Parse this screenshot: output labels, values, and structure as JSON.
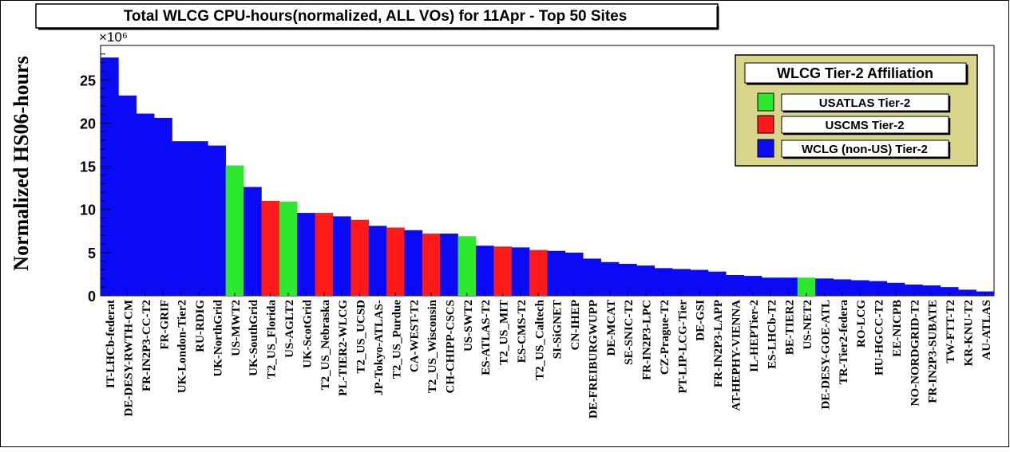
{
  "chart_data": {
    "type": "bar",
    "title": "Total WLCG CPU-hours(normalized, ALL VOs) for 11Apr - Top 50 Sites",
    "ylabel": "Normalized HS06-hours",
    "xlabel": "",
    "y_multiplier_label": "×10⁶",
    "ylim": [
      0,
      29
    ],
    "yticks": [
      0,
      5,
      10,
      15,
      20,
      25
    ],
    "grid": false,
    "legend_position": "top-right",
    "legend": {
      "title": "WLCG Tier-2 Affiliation",
      "entries": [
        {
          "label": "USATLAS Tier-2",
          "color": "#2ee82e"
        },
        {
          "label": "USCMS Tier-2",
          "color": "#ff1a1a"
        },
        {
          "label": "WCLG (non-US) Tier-2",
          "color": "#0a0af5"
        }
      ]
    },
    "colors": {
      "USATLAS": "#2ee82e",
      "USCMS": "#ff1a1a",
      "WLCG": "#0a0af5"
    },
    "categories": [
      "IT-LHCb-federat",
      "DE-DESY-RWTH-CM",
      "FR-IN2P3-CC-T2",
      "FR-GRIF",
      "UK-London-Tier2",
      "RU-RDIG",
      "UK-NorthGrid",
      "US-MWT2",
      "UK-SouthGrid",
      "T2_US_Florida",
      "US-AGLT2",
      "UK-ScotGrid",
      "T2_US_Nebraska",
      "PL-TIER2-WLCG",
      "T2_US_UCSD",
      "JP-Tokyo-ATLAS-",
      "T2_US_Purdue",
      "CA-WEST-T2",
      "T2_US_Wisconsin",
      "CH-CHIPP-CSCS",
      "US-SWT2",
      "ES-ATLAS-T2",
      "T2_US_MIT",
      "ES-CMS-T2",
      "T2_US_Caltech",
      "SI-SiGNET",
      "CN-IHEP",
      "DE-FREIBURGWUPP",
      "DE-MCAT",
      "SE-SNIC-T2",
      "FR-IN2P3-LPC",
      "CZ-Prague-T2",
      "PT-LIP-LCG-Tier",
      "DE-GSI",
      "FR-IN2P3-LAPP",
      "AT-HEPHY-VIENNA",
      "IL-HEPTier-2",
      "ES-LHCb-T2",
      "BE-TIER2",
      "US-NET2",
      "DE-DESY-GOE-ATL",
      "TR-Tier2-federa",
      "RO-LCG",
      "HU-HGCC-T2",
      "EE-NICPB",
      "NO-NORDGRID-T2",
      "FR-IN2P3-SUBATE",
      "TW-FTT-T2",
      "KR-KNU-T2",
      "AU-ATLAS"
    ],
    "values": [
      27.6,
      23.2,
      21.1,
      20.6,
      17.9,
      17.9,
      17.4,
      15.1,
      12.6,
      11.0,
      10.9,
      9.6,
      9.6,
      9.2,
      8.8,
      8.1,
      7.9,
      7.6,
      7.2,
      7.2,
      6.9,
      5.8,
      5.7,
      5.6,
      5.3,
      5.2,
      5.0,
      4.3,
      3.9,
      3.7,
      3.5,
      3.2,
      3.1,
      3.0,
      2.8,
      2.4,
      2.3,
      2.1,
      2.1,
      2.1,
      2.0,
      1.9,
      1.8,
      1.7,
      1.5,
      1.3,
      1.2,
      1.0,
      0.7,
      0.5
    ],
    "groups": [
      "WLCG",
      "WLCG",
      "WLCG",
      "WLCG",
      "WLCG",
      "WLCG",
      "WLCG",
      "USATLAS",
      "WLCG",
      "USCMS",
      "USATLAS",
      "WLCG",
      "USCMS",
      "WLCG",
      "USCMS",
      "WLCG",
      "USCMS",
      "WLCG",
      "USCMS",
      "WLCG",
      "USATLAS",
      "WLCG",
      "USCMS",
      "WLCG",
      "USCMS",
      "WLCG",
      "WLCG",
      "WLCG",
      "WLCG",
      "WLCG",
      "WLCG",
      "WLCG",
      "WLCG",
      "WLCG",
      "WLCG",
      "WLCG",
      "WLCG",
      "WLCG",
      "WLCG",
      "USATLAS",
      "WLCG",
      "WLCG",
      "WLCG",
      "WLCG",
      "WLCG",
      "WLCG",
      "WLCG",
      "WLCG",
      "WLCG",
      "WLCG"
    ]
  }
}
